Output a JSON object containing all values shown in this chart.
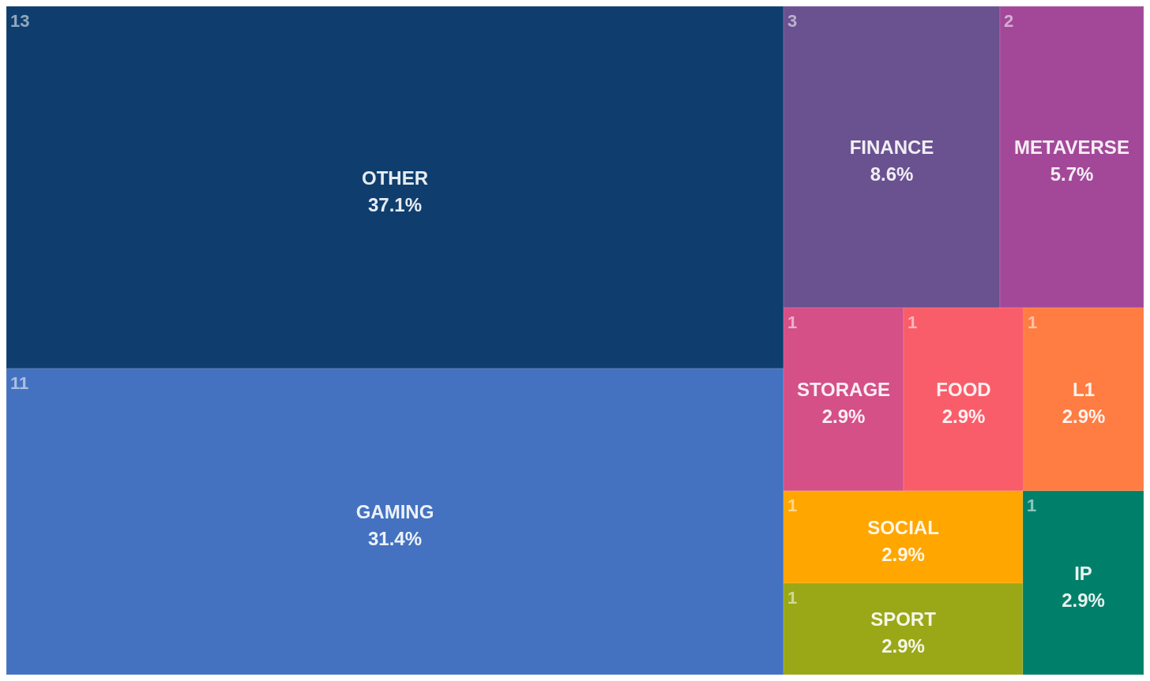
{
  "chart_data": {
    "type": "other",
    "categories": [
      "OTHER",
      "GAMING",
      "FINANCE",
      "METAVERSE",
      "STORAGE",
      "FOOD",
      "L1",
      "SOCIAL",
      "SPORT",
      "IP"
    ],
    "values": [
      37.1,
      31.4,
      8.6,
      5.7,
      2.9,
      2.9,
      2.9,
      2.9,
      2.9,
      2.9
    ],
    "value_labels": [
      "37.1%",
      "31.4%",
      "8.6%",
      "5.7%",
      "2.9%",
      "2.9%",
      "2.9%",
      "2.9%",
      "2.9%",
      "2.9%"
    ],
    "annotations": [
      {
        "text": "13",
        "x": "OTHER"
      },
      {
        "text": "11",
        "x": "GAMING"
      },
      {
        "text": "3",
        "x": "FINANCE"
      },
      {
        "text": "2",
        "x": "METAVERSE"
      },
      {
        "text": "1",
        "x": "STORAGE"
      },
      {
        "text": "1",
        "x": "FOOD"
      },
      {
        "text": "1",
        "x": "L1"
      },
      {
        "text": "1",
        "x": "SOCIAL"
      },
      {
        "text": "1",
        "x": "SPORT"
      },
      {
        "text": "1",
        "x": "IP"
      }
    ],
    "colors": [
      "#0f3e6e",
      "#4472c0",
      "#6a5190",
      "#a34899",
      "#d45087",
      "#f95d6a",
      "#ff7c43",
      "#ffa600",
      "#9aa817",
      "#00806a"
    ]
  }
}
